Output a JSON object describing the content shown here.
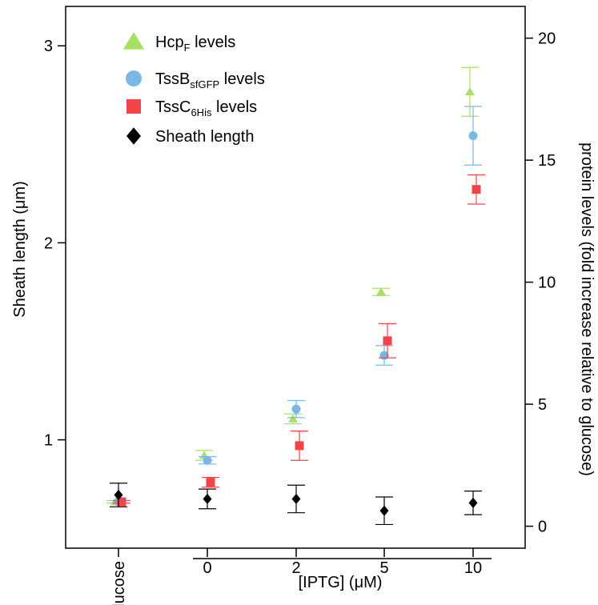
{
  "chart_data": {
    "type": "scatter",
    "categories": [
      "glucose",
      "0",
      "2",
      "5",
      "10"
    ],
    "x_group_label": "[IPTG] (μM)",
    "left_axis": {
      "label": "Sheath length (μm)",
      "ticks": [
        1,
        2,
        3
      ],
      "tick_labels": [
        "1",
        "2",
        "3"
      ],
      "range": [
        0.45,
        3.2
      ]
    },
    "right_axis": {
      "label": "protein levels (fold increase relative to glucose)",
      "ticks": [
        0,
        5,
        10,
        15,
        20
      ],
      "tick_labels": [
        "0",
        "5",
        "10",
        "15",
        "20"
      ],
      "range": [
        -0.9,
        21.3
      ]
    },
    "legend_position": "top-left",
    "series": [
      {
        "name": "HcpF levels",
        "legend_base": "Hcp",
        "legend_sub": "F",
        "legend_suffix": " levels",
        "marker": "triangle",
        "color": "#a8e063",
        "axis": "right",
        "values": [
          1.0,
          2.9,
          4.4,
          9.6,
          17.8
        ],
        "err": [
          0.05,
          0.2,
          0.2,
          0.15,
          1.0
        ]
      },
      {
        "name": "TssBsfGFP levels",
        "legend_base": "TssB",
        "legend_sub": "sfGFP",
        "legend_suffix": " levels",
        "marker": "circle",
        "color": "#7ab8e4",
        "axis": "right",
        "values": [
          1.0,
          2.7,
          4.8,
          7.0,
          16.0
        ],
        "err": [
          0.05,
          0.15,
          0.35,
          0.4,
          1.2
        ]
      },
      {
        "name": "TssC6His levels",
        "legend_base": "TssC",
        "legend_sub": "6His",
        "legend_suffix": " levels",
        "marker": "square",
        "color": "#f0444a",
        "axis": "right",
        "values": [
          1.0,
          1.8,
          3.3,
          7.6,
          13.8
        ],
        "err": [
          0.05,
          0.2,
          0.6,
          0.7,
          0.6
        ]
      },
      {
        "name": "Sheath length",
        "legend_base": "Sheath length",
        "legend_sub": "",
        "legend_suffix": "",
        "marker": "diamond",
        "color": "#000000",
        "axis": "left",
        "values": [
          0.72,
          0.7,
          0.7,
          0.64,
          0.68
        ],
        "err": [
          0.06,
          0.05,
          0.07,
          0.07,
          0.06
        ]
      }
    ]
  }
}
